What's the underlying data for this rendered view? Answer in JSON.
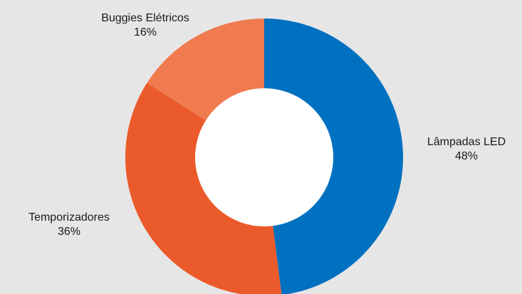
{
  "chart_data": {
    "type": "pie",
    "donut": true,
    "title": "",
    "slices": [
      {
        "label": "Lâmpadas LED",
        "value": 48,
        "value_label": "48%",
        "color": "#0070c0"
      },
      {
        "label": "Temporizadores",
        "value": 36,
        "value_label": "36%",
        "color": "#eb5a2a"
      },
      {
        "label": "Buggies Elétricos",
        "value": 16,
        "value_label": "16%",
        "color": "#f07b4f"
      }
    ],
    "background_color": "#e6e6e6"
  }
}
